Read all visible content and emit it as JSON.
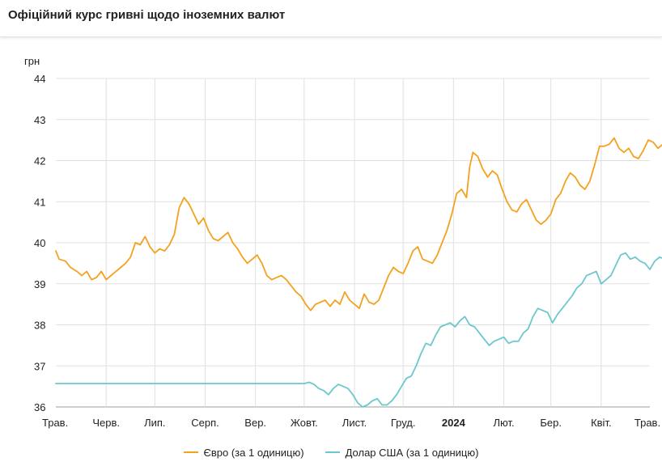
{
  "header": {
    "title": "Офіційний курс гривні щодо іноземних валют"
  },
  "chart_data": {
    "type": "line",
    "title": "Офіційний курс гривні щодо іноземних валют",
    "ylabel": "грн",
    "ylim": [
      36,
      44
    ],
    "yticks": [
      36,
      37,
      38,
      39,
      40,
      41,
      42,
      43,
      44
    ],
    "xlim": [
      "2023-05-01",
      "2024-05-01"
    ],
    "grid": true,
    "legend_position": "bottom",
    "x_ticks": [
      {
        "label": "Трав.",
        "date": "2023-05-01"
      },
      {
        "label": "Черв.",
        "date": "2023-06-01"
      },
      {
        "label": "Лип.",
        "date": "2023-07-01"
      },
      {
        "label": "Серп.",
        "date": "2023-08-01"
      },
      {
        "label": "Вер.",
        "date": "2023-09-01"
      },
      {
        "label": "Жовт.",
        "date": "2023-10-01"
      },
      {
        "label": "Лист.",
        "date": "2023-11-01"
      },
      {
        "label": "Груд.",
        "date": "2023-12-01"
      },
      {
        "label": "2024",
        "date": "2024-01-01",
        "bold": true
      },
      {
        "label": "Лют.",
        "date": "2024-02-01"
      },
      {
        "label": "Бер.",
        "date": "2024-03-01"
      },
      {
        "label": "Квіт.",
        "date": "2024-04-01"
      },
      {
        "label": "Трав.",
        "date": "2024-05-01"
      }
    ],
    "series": [
      {
        "name": "Євро (за 1 одиницю)",
        "color": "#f4a11e",
        "points": [
          [
            "2023-05-01",
            39.8
          ],
          [
            "2023-05-03",
            39.6
          ],
          [
            "2023-05-07",
            39.55
          ],
          [
            "2023-05-10",
            39.4
          ],
          [
            "2023-05-14",
            39.3
          ],
          [
            "2023-05-17",
            39.2
          ],
          [
            "2023-05-20",
            39.3
          ],
          [
            "2023-05-23",
            39.1
          ],
          [
            "2023-05-26",
            39.15
          ],
          [
            "2023-05-29",
            39.3
          ],
          [
            "2023-06-01",
            39.1
          ],
          [
            "2023-06-04",
            39.2
          ],
          [
            "2023-06-07",
            39.3
          ],
          [
            "2023-06-10",
            39.4
          ],
          [
            "2023-06-13",
            39.5
          ],
          [
            "2023-06-16",
            39.65
          ],
          [
            "2023-06-19",
            40.0
          ],
          [
            "2023-06-22",
            39.95
          ],
          [
            "2023-06-25",
            40.15
          ],
          [
            "2023-06-28",
            39.9
          ],
          [
            "2023-07-01",
            39.75
          ],
          [
            "2023-07-04",
            39.85
          ],
          [
            "2023-07-07",
            39.8
          ],
          [
            "2023-07-10",
            39.95
          ],
          [
            "2023-07-13",
            40.2
          ],
          [
            "2023-07-16",
            40.85
          ],
          [
            "2023-07-19",
            41.1
          ],
          [
            "2023-07-22",
            40.95
          ],
          [
            "2023-07-25",
            40.7
          ],
          [
            "2023-07-28",
            40.45
          ],
          [
            "2023-07-31",
            40.6
          ],
          [
            "2023-08-03",
            40.3
          ],
          [
            "2023-08-06",
            40.1
          ],
          [
            "2023-08-09",
            40.05
          ],
          [
            "2023-08-12",
            40.15
          ],
          [
            "2023-08-15",
            40.25
          ],
          [
            "2023-08-18",
            40.0
          ],
          [
            "2023-08-21",
            39.85
          ],
          [
            "2023-08-24",
            39.65
          ],
          [
            "2023-08-27",
            39.5
          ],
          [
            "2023-08-30",
            39.6
          ],
          [
            "2023-09-02",
            39.7
          ],
          [
            "2023-09-05",
            39.5
          ],
          [
            "2023-09-08",
            39.2
          ],
          [
            "2023-09-11",
            39.1
          ],
          [
            "2023-09-14",
            39.15
          ],
          [
            "2023-09-17",
            39.2
          ],
          [
            "2023-09-20",
            39.1
          ],
          [
            "2023-09-23",
            38.95
          ],
          [
            "2023-09-26",
            38.8
          ],
          [
            "2023-09-29",
            38.7
          ],
          [
            "2023-10-02",
            38.5
          ],
          [
            "2023-10-05",
            38.35
          ],
          [
            "2023-10-08",
            38.5
          ],
          [
            "2023-10-11",
            38.55
          ],
          [
            "2023-10-14",
            38.6
          ],
          [
            "2023-10-17",
            38.45
          ],
          [
            "2023-10-20",
            38.6
          ],
          [
            "2023-10-23",
            38.5
          ],
          [
            "2023-10-26",
            38.8
          ],
          [
            "2023-10-29",
            38.6
          ],
          [
            "2023-11-01",
            38.5
          ],
          [
            "2023-11-04",
            38.4
          ],
          [
            "2023-11-07",
            38.75
          ],
          [
            "2023-11-10",
            38.55
          ],
          [
            "2023-11-13",
            38.5
          ],
          [
            "2023-11-16",
            38.6
          ],
          [
            "2023-11-19",
            38.9
          ],
          [
            "2023-11-22",
            39.2
          ],
          [
            "2023-11-25",
            39.4
          ],
          [
            "2023-11-28",
            39.3
          ],
          [
            "2023-12-01",
            39.25
          ],
          [
            "2023-12-04",
            39.5
          ],
          [
            "2023-12-07",
            39.8
          ],
          [
            "2023-12-10",
            39.9
          ],
          [
            "2023-12-13",
            39.6
          ],
          [
            "2023-12-16",
            39.55
          ],
          [
            "2023-12-19",
            39.5
          ],
          [
            "2023-12-22",
            39.7
          ],
          [
            "2023-12-25",
            40.0
          ],
          [
            "2023-12-28",
            40.3
          ],
          [
            "2023-12-31",
            40.7
          ],
          [
            "2024-01-03",
            41.2
          ],
          [
            "2024-01-06",
            41.3
          ],
          [
            "2024-01-09",
            41.1
          ],
          [
            "2024-01-11",
            41.85
          ],
          [
            "2024-01-13",
            42.2
          ],
          [
            "2024-01-16",
            42.1
          ],
          [
            "2024-01-19",
            41.8
          ],
          [
            "2024-01-22",
            41.6
          ],
          [
            "2024-01-25",
            41.75
          ],
          [
            "2024-01-28",
            41.65
          ],
          [
            "2024-01-31",
            41.3
          ],
          [
            "2024-02-03",
            41.0
          ],
          [
            "2024-02-06",
            40.8
          ],
          [
            "2024-02-09",
            40.75
          ],
          [
            "2024-02-12",
            40.95
          ],
          [
            "2024-02-15",
            41.05
          ],
          [
            "2024-02-18",
            40.8
          ],
          [
            "2024-02-21",
            40.55
          ],
          [
            "2024-02-24",
            40.45
          ],
          [
            "2024-02-27",
            40.55
          ],
          [
            "2024-03-01",
            40.7
          ],
          [
            "2024-03-04",
            41.05
          ],
          [
            "2024-03-07",
            41.2
          ],
          [
            "2024-03-10",
            41.5
          ],
          [
            "2024-03-13",
            41.7
          ],
          [
            "2024-03-16",
            41.6
          ],
          [
            "2024-03-19",
            41.4
          ],
          [
            "2024-03-22",
            41.3
          ],
          [
            "2024-03-25",
            41.5
          ],
          [
            "2024-03-28",
            41.9
          ],
          [
            "2024-03-31",
            42.35
          ],
          [
            "2024-04-03",
            42.35
          ],
          [
            "2024-04-06",
            42.4
          ],
          [
            "2024-04-09",
            42.55
          ],
          [
            "2024-04-12",
            42.3
          ],
          [
            "2024-04-15",
            42.2
          ],
          [
            "2024-04-18",
            42.3
          ],
          [
            "2024-04-21",
            42.1
          ],
          [
            "2024-04-24",
            42.05
          ],
          [
            "2024-04-27",
            42.25
          ],
          [
            "2024-04-30",
            42.5
          ],
          [
            "2024-05-03",
            42.45
          ],
          [
            "2024-05-06",
            42.3
          ],
          [
            "2024-05-09",
            42.4
          ],
          [
            "2024-05-12",
            42.85
          ],
          [
            "2024-05-14",
            42.85
          ]
        ]
      },
      {
        "name": "Долар США (за 1 одиницю)",
        "color": "#6cc8cc",
        "points": [
          [
            "2023-05-01",
            36.5686
          ],
          [
            "2023-10-01",
            36.5686
          ],
          [
            "2023-10-04",
            36.6
          ],
          [
            "2023-10-07",
            36.55
          ],
          [
            "2023-10-10",
            36.45
          ],
          [
            "2023-10-13",
            36.4
          ],
          [
            "2023-10-16",
            36.3
          ],
          [
            "2023-10-19",
            36.45
          ],
          [
            "2023-10-22",
            36.55
          ],
          [
            "2023-10-25",
            36.5
          ],
          [
            "2023-10-28",
            36.45
          ],
          [
            "2023-10-31",
            36.3
          ],
          [
            "2023-11-03",
            36.1
          ],
          [
            "2023-11-06",
            36.0
          ],
          [
            "2023-11-09",
            36.05
          ],
          [
            "2023-11-12",
            36.15
          ],
          [
            "2023-11-15",
            36.2
          ],
          [
            "2023-11-18",
            36.05
          ],
          [
            "2023-11-21",
            36.05
          ],
          [
            "2023-11-24",
            36.15
          ],
          [
            "2023-11-27",
            36.3
          ],
          [
            "2023-11-30",
            36.5
          ],
          [
            "2023-12-03",
            36.7
          ],
          [
            "2023-12-06",
            36.75
          ],
          [
            "2023-12-09",
            37.0
          ],
          [
            "2023-12-12",
            37.3
          ],
          [
            "2023-12-15",
            37.55
          ],
          [
            "2023-12-18",
            37.5
          ],
          [
            "2023-12-21",
            37.75
          ],
          [
            "2023-12-24",
            37.95
          ],
          [
            "2023-12-27",
            38.0
          ],
          [
            "2023-12-30",
            38.05
          ],
          [
            "2024-01-02",
            37.95
          ],
          [
            "2024-01-05",
            38.1
          ],
          [
            "2024-01-08",
            38.2
          ],
          [
            "2024-01-11",
            38.0
          ],
          [
            "2024-01-14",
            37.95
          ],
          [
            "2024-01-17",
            37.8
          ],
          [
            "2024-01-20",
            37.65
          ],
          [
            "2024-01-23",
            37.5
          ],
          [
            "2024-01-26",
            37.6
          ],
          [
            "2024-01-29",
            37.65
          ],
          [
            "2024-02-01",
            37.7
          ],
          [
            "2024-02-04",
            37.55
          ],
          [
            "2024-02-07",
            37.6
          ],
          [
            "2024-02-10",
            37.6
          ],
          [
            "2024-02-13",
            37.8
          ],
          [
            "2024-02-16",
            37.9
          ],
          [
            "2024-02-19",
            38.2
          ],
          [
            "2024-02-22",
            38.4
          ],
          [
            "2024-02-25",
            38.35
          ],
          [
            "2024-02-28",
            38.3
          ],
          [
            "2024-03-02",
            38.05
          ],
          [
            "2024-03-05",
            38.25
          ],
          [
            "2024-03-08",
            38.4
          ],
          [
            "2024-03-11",
            38.55
          ],
          [
            "2024-03-14",
            38.7
          ],
          [
            "2024-03-17",
            38.9
          ],
          [
            "2024-03-20",
            39.0
          ],
          [
            "2024-03-23",
            39.2
          ],
          [
            "2024-03-26",
            39.25
          ],
          [
            "2024-03-29",
            39.3
          ],
          [
            "2024-04-01",
            39.0
          ],
          [
            "2024-04-04",
            39.1
          ],
          [
            "2024-04-07",
            39.2
          ],
          [
            "2024-04-10",
            39.45
          ],
          [
            "2024-04-13",
            39.7
          ],
          [
            "2024-04-16",
            39.75
          ],
          [
            "2024-04-19",
            39.6
          ],
          [
            "2024-04-22",
            39.65
          ],
          [
            "2024-04-25",
            39.55
          ],
          [
            "2024-04-28",
            39.5
          ],
          [
            "2024-05-01",
            39.35
          ],
          [
            "2024-05-04",
            39.55
          ],
          [
            "2024-05-07",
            39.65
          ],
          [
            "2024-05-10",
            39.6
          ],
          [
            "2024-05-14",
            39.6
          ]
        ]
      }
    ]
  }
}
